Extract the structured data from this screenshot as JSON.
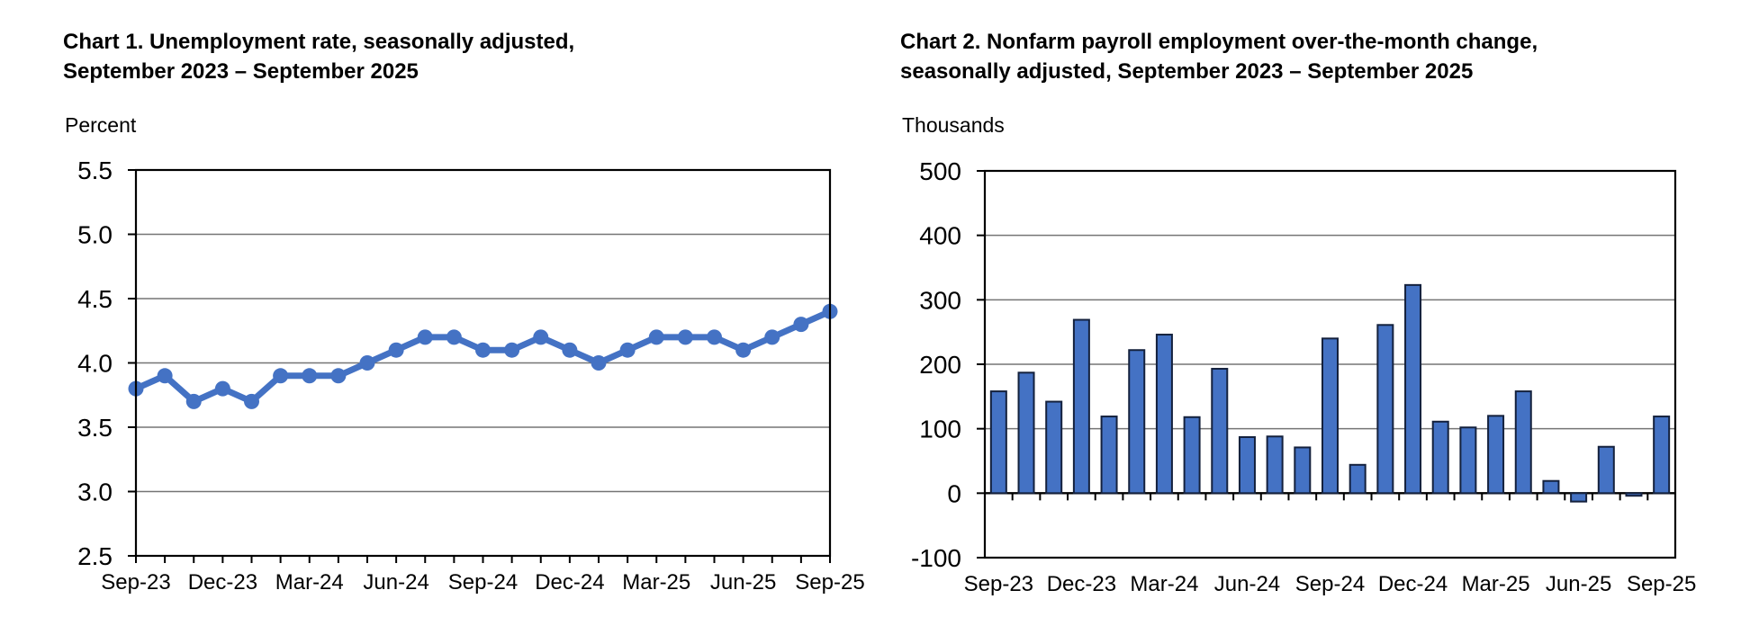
{
  "page": {
    "background": "#ffffff"
  },
  "chart_data": [
    {
      "id": "unemployment-rate",
      "type": "line",
      "title_line1": "Chart 1. Unemployment rate, seasonally adjusted,",
      "title_line2": "September 2023 – September 2025",
      "unit_label": "Percent",
      "x": [
        "Sep-23",
        "Oct-23",
        "Nov-23",
        "Dec-23",
        "Jan-24",
        "Feb-24",
        "Mar-24",
        "Apr-24",
        "May-24",
        "Jun-24",
        "Jul-24",
        "Aug-24",
        "Sep-24",
        "Oct-24",
        "Nov-24",
        "Dec-24",
        "Jan-25",
        "Feb-25",
        "Mar-25",
        "Apr-25",
        "May-25",
        "Jun-25",
        "Jul-25",
        "Aug-25",
        "Sep-25"
      ],
      "values": [
        3.8,
        3.9,
        3.7,
        3.8,
        3.7,
        3.9,
        3.9,
        3.9,
        4.0,
        4.1,
        4.2,
        4.2,
        4.1,
        4.1,
        4.2,
        4.1,
        4.0,
        4.1,
        4.2,
        4.2,
        4.2,
        4.1,
        4.2,
        4.3,
        4.4
      ],
      "x_tick_labels": [
        "Sep-23",
        "Dec-23",
        "Mar-24",
        "Jun-24",
        "Sep-24",
        "Dec-24",
        "Mar-25",
        "Jun-25",
        "Sep-25"
      ],
      "ylim": [
        2.5,
        5.5
      ],
      "y_ticks": [
        5.5,
        5.0,
        4.5,
        4.0,
        3.5,
        3.0,
        2.5
      ],
      "y_tick_labels": [
        "5.5",
        "5.0",
        "4.5",
        "4.0",
        "3.5",
        "3.0",
        "2.5"
      ],
      "grid": "horizontal",
      "legend": "none",
      "line_color": "#4472C4",
      "marker": "circle"
    },
    {
      "id": "nonfarm-payroll-change",
      "type": "bar",
      "title_line1": "Chart 2. Nonfarm payroll employment over-the-month change,",
      "title_line2": "seasonally adjusted, September 2023 – September 2025",
      "unit_label": "Thousands",
      "x": [
        "Sep-23",
        "Oct-23",
        "Nov-23",
        "Dec-23",
        "Jan-24",
        "Feb-24",
        "Mar-24",
        "Apr-24",
        "May-24",
        "Jun-24",
        "Jul-24",
        "Aug-24",
        "Sep-24",
        "Oct-24",
        "Nov-24",
        "Dec-24",
        "Jan-25",
        "Feb-25",
        "Mar-25",
        "Apr-25",
        "May-25",
        "Jun-25",
        "Jul-25",
        "Aug-25",
        "Sep-25"
      ],
      "values": [
        158,
        187,
        142,
        269,
        119,
        222,
        246,
        118,
        193,
        87,
        88,
        71,
        240,
        44,
        261,
        323,
        111,
        102,
        120,
        158,
        19,
        -13,
        72,
        -4,
        119
      ],
      "x_tick_labels": [
        "Sep-23",
        "Dec-23",
        "Mar-24",
        "Jun-24",
        "Sep-24",
        "Dec-24",
        "Mar-25",
        "Jun-25",
        "Sep-25"
      ],
      "ylim": [
        -100,
        500
      ],
      "y_ticks": [
        500,
        400,
        300,
        200,
        100,
        0,
        -100
      ],
      "y_tick_labels": [
        "500",
        "400",
        "300",
        "200",
        "100",
        "0",
        "-100"
      ],
      "grid": "horizontal",
      "legend": "none",
      "bar_color": "#4472C4",
      "bar_border_color": "#14213d"
    }
  ],
  "colors": {
    "series_blue": "#4472C4",
    "bar_border": "#14213d",
    "gridline": "#757575",
    "axis": "#000000"
  }
}
